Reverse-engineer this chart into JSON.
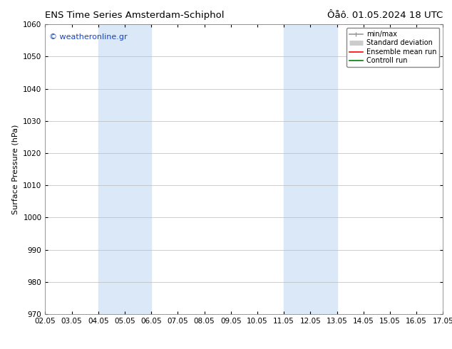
{
  "title_left": "ENS Time Series Amsterdam-Schiphol",
  "title_right": "Ôåô. 01.05.2024 18 UTC",
  "ylabel": "Surface Pressure (hPa)",
  "ylim": [
    970,
    1060
  ],
  "yticks": [
    970,
    980,
    990,
    1000,
    1010,
    1020,
    1030,
    1040,
    1050,
    1060
  ],
  "xtick_labels": [
    "02.05",
    "03.05",
    "04.05",
    "05.05",
    "06.05",
    "07.05",
    "08.05",
    "09.05",
    "10.05",
    "11.05",
    "12.05",
    "13.05",
    "14.05",
    "15.05",
    "16.05",
    "17.05"
  ],
  "xtick_positions": [
    0,
    1,
    2,
    3,
    4,
    5,
    6,
    7,
    8,
    9,
    10,
    11,
    12,
    13,
    14,
    15
  ],
  "shaded_regions": [
    {
      "x_start": 2,
      "x_end": 4,
      "color": "#dae8f7"
    },
    {
      "x_start": 9,
      "x_end": 11,
      "color": "#dae8f7"
    }
  ],
  "watermark_text": "© weatheronline.gr",
  "watermark_color": "#1a44bb",
  "legend_entries": [
    {
      "label": "min/max",
      "color": "#999999",
      "linestyle": "-",
      "linewidth": 1.2
    },
    {
      "label": "Standard deviation",
      "color": "#cccccc",
      "linestyle": "-",
      "linewidth": 5
    },
    {
      "label": "Ensemble mean run",
      "color": "#ff0000",
      "linestyle": "-",
      "linewidth": 1.2
    },
    {
      "label": "Controll run",
      "color": "#008000",
      "linestyle": "-",
      "linewidth": 1.2
    }
  ],
  "background_color": "#ffffff",
  "grid_color": "#bbbbbb",
  "title_fontsize": 9.5,
  "watermark_fontsize": 8,
  "axis_label_fontsize": 8,
  "tick_fontsize": 7.5,
  "legend_fontsize": 7
}
